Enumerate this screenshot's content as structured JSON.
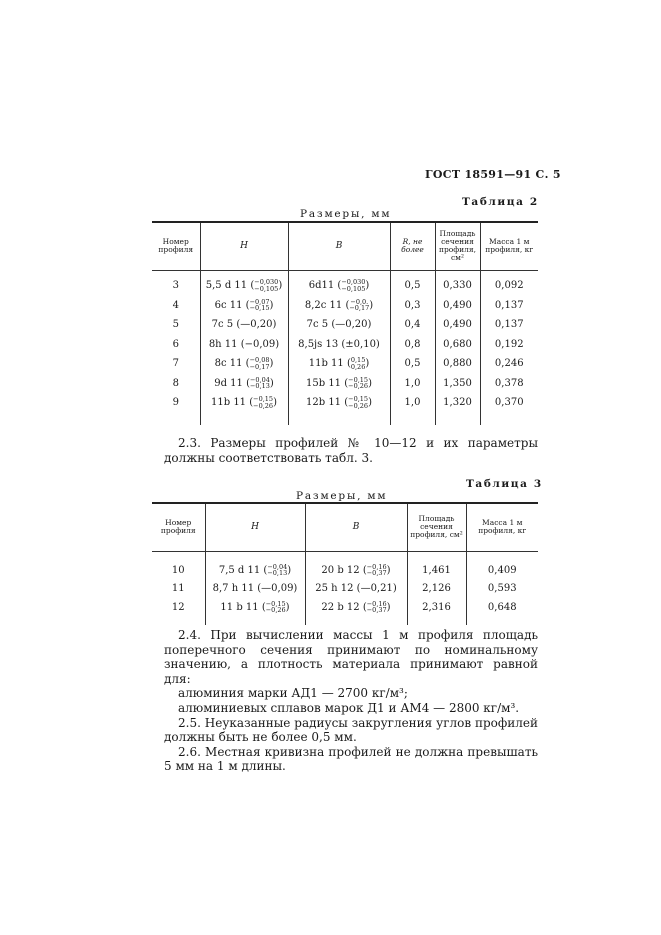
{
  "page_header": "ГОСТ 18591—91 С. 5",
  "table2": {
    "caption": "Таблица 2",
    "units": "Размеры, мм",
    "headers": [
      "Номер профиля",
      "H",
      "B",
      "R, не более",
      "Площадь сечения профиля, см²",
      "Масса 1 м профиля, кг"
    ],
    "rows": [
      {
        "num": "3",
        "h": {
          "base": "5,5 d 11",
          "upper": "−0,030",
          "lower": "−0,105"
        },
        "b": {
          "base": "6d11",
          "upper": "−0,030",
          "lower": "−0,105"
        },
        "r": "0,5",
        "area": "0,330",
        "mass": "0,092"
      },
      {
        "num": "4",
        "h": {
          "base": "6c 11",
          "upper": "−0,07",
          "lower": "−0,15"
        },
        "b": {
          "base": "8,2c 11",
          "upper": "−0,0.",
          "lower": "−0,17"
        },
        "r": "0,3",
        "area": "0,490",
        "mass": "0,137"
      },
      {
        "num": "5",
        "h": {
          "base": "7c 5",
          "tol": "(—0,20)"
        },
        "b": {
          "base": "7c 5",
          "tol": "(—0,20)"
        },
        "r": "0,4",
        "area": "0,490",
        "mass": "0,137"
      },
      {
        "num": "6",
        "h": {
          "base": "8h 11",
          "tol": "(−0,09)"
        },
        "b": {
          "base": "8,5js 13",
          "tol": "(±0,10)"
        },
        "r": "0,8",
        "area": "0,680",
        "mass": "0,192"
      },
      {
        "num": "7",
        "h": {
          "base": "8c 11",
          "upper": "−0,08",
          "lower": "−0,17"
        },
        "b": {
          "base": "11b 11",
          "upper": "0,15",
          "lower": "0,26"
        },
        "r": "0,5",
        "area": "0,880",
        "mass": "0,246"
      },
      {
        "num": "8",
        "h": {
          "base": "9d 11",
          "upper": "−0,04",
          "lower": "−0,13"
        },
        "b": {
          "base": "15b 11",
          "upper": "−0,15",
          "lower": "−0,26"
        },
        "r": "1,0",
        "area": "1,350",
        "mass": "0,378"
      },
      {
        "num": "9",
        "h": {
          "base": "11b 11",
          "upper": "−0,15",
          "lower": "−0,26"
        },
        "b": {
          "base": "12b 11",
          "upper": "−0,15",
          "lower": "−0,26"
        },
        "r": "1,0",
        "area": "1,320",
        "mass": "0,370"
      }
    ]
  },
  "para_2_3": "2.3. Размеры профилей № 10—12 и их параметры должны соответствовать табл. 3.",
  "table3": {
    "caption": "Таблица 3",
    "units": "Размеры, мм",
    "headers": [
      "Номер профиля",
      "H",
      "B",
      "Площадь сечения профиля, см²",
      "Масса 1 м профиля, кг"
    ],
    "rows": [
      {
        "num": "10",
        "h": {
          "base": "7,5 d 11",
          "upper": "−0,04",
          "lower": "−0,13"
        },
        "b": {
          "base": "20 b 12",
          "upper": "−0,16",
          "lower": "−0,37"
        },
        "area": "1,461",
        "mass": "0,409"
      },
      {
        "num": "11",
        "h": {
          "base": "8,7 h 11",
          "tol": "(—0,09)"
        },
        "b": {
          "base": "25 h 12",
          "tol": "(—0,21)"
        },
        "area": "2,126",
        "mass": "0,593"
      },
      {
        "num": "12",
        "h": {
          "base": "11 b 11",
          "upper": "−0,15",
          "lower": "−0,26"
        },
        "b": {
          "base": "22 b 12",
          "upper": "−0,16",
          "lower": "−0,37"
        },
        "area": "2,316",
        "mass": "0,648"
      }
    ]
  },
  "paragraphs": [
    {
      "text": "2.4. При вычислении массы 1 м профиля площадь поперечного сечения принимают по номинальному значению, а плотность материала принимают равной для:",
      "indent": true
    },
    {
      "text": "алюминия марки АД1 — 2700 кг/м³;",
      "indent": true
    },
    {
      "text": "алюминиевых сплавов марок Д1 и АМ4 — 2800 кг/м³.",
      "indent": true
    },
    {
      "text": "2.5. Неуказанные радиусы закругления углов профилей должны быть не более 0,5 мм.",
      "indent": true
    },
    {
      "text": "2.6. Местная кривизна профилей не должна превышать 5 мм на 1 м длины.",
      "indent": true
    }
  ]
}
